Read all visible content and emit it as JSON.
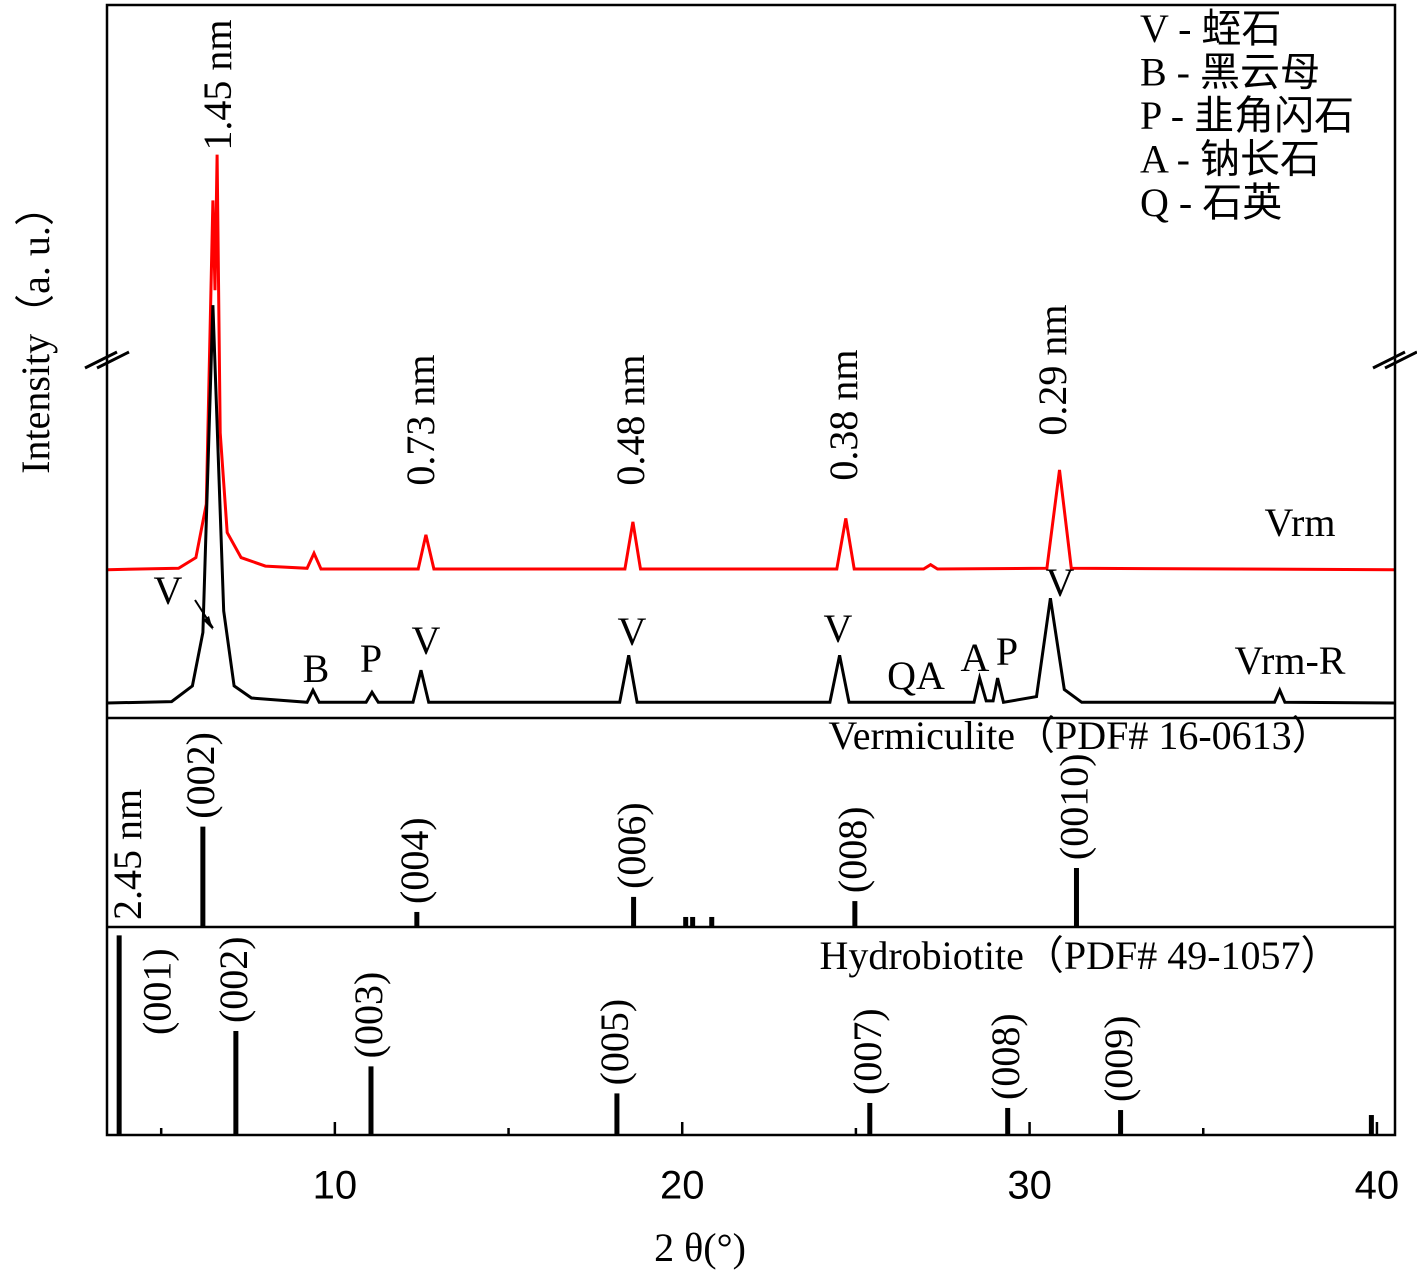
{
  "chart_data": [
    {
      "type": "line",
      "ylabel": "Intensity（a. u.）",
      "xlim": [
        3.44,
        40.52
      ],
      "ylim": [
        0,
        100
      ],
      "axis_break": true,
      "series": [
        {
          "name": "Vrm",
          "color": "#ff0000",
          "x": [
            3.44,
            5.5,
            6.0,
            6.3,
            6.49,
            6.55,
            6.61,
            6.7,
            6.9,
            7.3,
            8.0,
            9.2,
            9.4,
            9.6,
            12.4,
            12.62,
            12.85,
            18.35,
            18.58,
            18.8,
            24.45,
            24.71,
            24.95,
            26.95,
            27.15,
            27.35,
            30.5,
            30.86,
            31.2,
            40.52
          ],
          "values": [
            20.8,
            21.0,
            22.5,
            30,
            72.6,
            60,
            79,
            40,
            26,
            22.5,
            21.3,
            21.0,
            23.1,
            20.9,
            20.9,
            25.7,
            20.9,
            20.9,
            27.5,
            20.9,
            20.9,
            28,
            20.9,
            20.9,
            21.5,
            20.9,
            21.0,
            34.8,
            21.0,
            20.8
          ]
        },
        {
          "name": "Vrm-R",
          "color": "#000000",
          "x": [
            3.44,
            5.3,
            5.9,
            6.2,
            6.49,
            6.8,
            7.1,
            7.6,
            9.2,
            9.37,
            9.55,
            10.9,
            11.07,
            11.25,
            12.25,
            12.48,
            12.7,
            18.2,
            18.46,
            18.7,
            24.25,
            24.53,
            24.8,
            28.4,
            28.56,
            28.75,
            28.95,
            29.08,
            29.25,
            30.2,
            30.6,
            31.0,
            31.5,
            37.05,
            37.2,
            37.35,
            40.52
          ],
          "values": [
            2.1,
            2.3,
            4.5,
            12,
            57.9,
            15,
            4.5,
            2.8,
            2.2,
            3.9,
            2.2,
            2.2,
            3.6,
            2.2,
            2.2,
            6.7,
            2.2,
            2.2,
            8.8,
            2.2,
            2.2,
            8.8,
            2.2,
            2.2,
            5.6,
            2.4,
            2.4,
            5.6,
            2.2,
            3.0,
            16.8,
            4.0,
            2.2,
            2.2,
            3.9,
            2.2,
            2.1
          ]
        }
      ],
      "d_spacing_labels": [
        "1.45 nm",
        "0.73 nm",
        "0.48 nm",
        "0.38 nm",
        "0.29 nm"
      ],
      "phase_labels": [
        "V",
        "B",
        "P",
        "V",
        "V",
        "V",
        "QA",
        "A",
        "P",
        "V"
      ],
      "legend_text": [
        "V - 蛭石",
        "B - 黑云母",
        "P - 韭角闪石",
        "A - 钠长石",
        "Q - 石英"
      ]
    },
    {
      "type": "stick",
      "title": "Vermiculite（PDF# 16-0613）",
      "xlim": [
        3.44,
        40.52
      ],
      "ylim": [
        0,
        100
      ],
      "color": "#000000",
      "x": [
        6.2,
        12.36,
        18.6,
        20.1,
        20.3,
        20.85,
        24.97,
        31.35
      ],
      "values": [
        48,
        7.2,
        14.4,
        4.8,
        4.8,
        4.8,
        12.4,
        28.2
      ],
      "labels": [
        "(002)",
        "(004)",
        "(006)",
        null,
        null,
        null,
        "(008)",
        "(0010)"
      ],
      "annotation": "2.45 nm"
    },
    {
      "type": "stick",
      "title": "Hydrobiotite（PDF# 49-1057）",
      "xlabel": "2 θ(°)",
      "xlim": [
        3.44,
        40.52
      ],
      "ylim": [
        0,
        100
      ],
      "color": "#000000",
      "x": [
        3.79,
        7.15,
        11.04,
        18.12,
        25.4,
        29.37,
        32.62,
        39.84
      ],
      "values": [
        96,
        50,
        33,
        20,
        15.4,
        13,
        12,
        9.6
      ],
      "labels": [
        "(001)",
        "(002)",
        "(003)",
        "(005)",
        "(007)",
        "(008)",
        "(009)",
        null
      ],
      "xticks": [
        10,
        20,
        30,
        40
      ],
      "xminor": [
        5,
        15,
        25,
        35
      ]
    }
  ]
}
